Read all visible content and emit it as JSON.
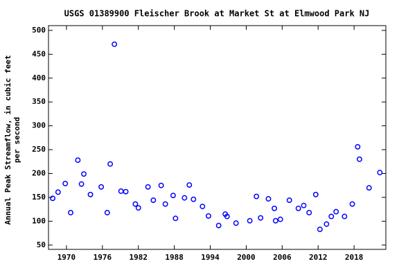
{
  "chart_data": {
    "type": "scatter",
    "title": "USGS 01389900 Fleischer Brook at Market St at Elmwood Park NJ",
    "ylabel": [
      "Annual Peak Streamflow, in cubic feet",
      "per second"
    ],
    "color": "#0000ff",
    "grid": false,
    "xlim": [
      1967,
      2023.3
    ],
    "ylim": [
      41,
      510
    ],
    "xticks": [
      1970,
      1976,
      1982,
      1988,
      1994,
      2000,
      2006,
      2012,
      2018
    ],
    "yticks": [
      50,
      100,
      150,
      200,
      250,
      300,
      350,
      400,
      450,
      500
    ],
    "x": [
      1967.7,
      1968.6,
      1969.8,
      1970.7,
      1971.9,
      1972.5,
      1972.9,
      1974.0,
      1975.8,
      1976.8,
      1977.3,
      1978.0,
      1979.1,
      1979.9,
      1981.5,
      1982.0,
      1983.6,
      1984.5,
      1985.8,
      1986.5,
      1987.8,
      1988.2,
      1989.7,
      1990.5,
      1991.2,
      1992.7,
      1993.7,
      1995.4,
      1996.5,
      1996.8,
      1998.3,
      2000.6,
      2001.7,
      2002.4,
      2003.7,
      2004.7,
      2004.9,
      2005.7,
      2007.2,
      2008.7,
      2009.6,
      2010.5,
      2011.6,
      2012.3,
      2013.4,
      2014.2,
      2015.0,
      2016.4,
      2017.7,
      2018.6,
      2018.9,
      2020.5,
      2022.3
    ],
    "values": [
      148,
      161,
      179,
      118,
      228,
      178,
      199,
      156,
      172,
      118,
      220,
      471,
      163,
      162,
      136,
      128,
      172,
      144,
      175,
      136,
      154,
      106,
      149,
      176,
      146,
      131,
      111,
      91,
      115,
      110,
      96,
      101,
      152,
      107,
      147,
      127,
      101,
      104,
      144,
      127,
      133,
      118,
      156,
      83,
      94,
      110,
      120,
      110,
      136,
      256,
      230,
      170,
      202
    ]
  }
}
